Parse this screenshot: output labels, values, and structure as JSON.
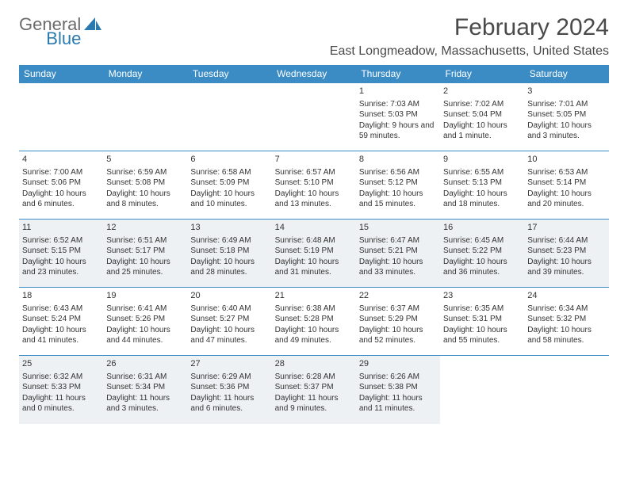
{
  "logo": {
    "part1": "General",
    "part2": "Blue"
  },
  "title": "February 2024",
  "location": "East Longmeadow, Massachusetts, United States",
  "dayHeaders": [
    "Sunday",
    "Monday",
    "Tuesday",
    "Wednesday",
    "Thursday",
    "Friday",
    "Saturday"
  ],
  "colors": {
    "headerBg": "#3b8bc4",
    "headerText": "#ffffff",
    "shaded": "#eef1f3",
    "border": "#3b8bc4",
    "logoAccent": "#2a7ab0",
    "logoGray": "#6b6b6b"
  },
  "startOffset": 4,
  "days": [
    {
      "n": "1",
      "sunrise": "7:03 AM",
      "sunset": "5:03 PM",
      "daylight": "9 hours and 59 minutes."
    },
    {
      "n": "2",
      "sunrise": "7:02 AM",
      "sunset": "5:04 PM",
      "daylight": "10 hours and 1 minute."
    },
    {
      "n": "3",
      "sunrise": "7:01 AM",
      "sunset": "5:05 PM",
      "daylight": "10 hours and 3 minutes."
    },
    {
      "n": "4",
      "sunrise": "7:00 AM",
      "sunset": "5:06 PM",
      "daylight": "10 hours and 6 minutes."
    },
    {
      "n": "5",
      "sunrise": "6:59 AM",
      "sunset": "5:08 PM",
      "daylight": "10 hours and 8 minutes."
    },
    {
      "n": "6",
      "sunrise": "6:58 AM",
      "sunset": "5:09 PM",
      "daylight": "10 hours and 10 minutes."
    },
    {
      "n": "7",
      "sunrise": "6:57 AM",
      "sunset": "5:10 PM",
      "daylight": "10 hours and 13 minutes."
    },
    {
      "n": "8",
      "sunrise": "6:56 AM",
      "sunset": "5:12 PM",
      "daylight": "10 hours and 15 minutes."
    },
    {
      "n": "9",
      "sunrise": "6:55 AM",
      "sunset": "5:13 PM",
      "daylight": "10 hours and 18 minutes."
    },
    {
      "n": "10",
      "sunrise": "6:53 AM",
      "sunset": "5:14 PM",
      "daylight": "10 hours and 20 minutes."
    },
    {
      "n": "11",
      "sunrise": "6:52 AM",
      "sunset": "5:15 PM",
      "daylight": "10 hours and 23 minutes."
    },
    {
      "n": "12",
      "sunrise": "6:51 AM",
      "sunset": "5:17 PM",
      "daylight": "10 hours and 25 minutes."
    },
    {
      "n": "13",
      "sunrise": "6:49 AM",
      "sunset": "5:18 PM",
      "daylight": "10 hours and 28 minutes."
    },
    {
      "n": "14",
      "sunrise": "6:48 AM",
      "sunset": "5:19 PM",
      "daylight": "10 hours and 31 minutes."
    },
    {
      "n": "15",
      "sunrise": "6:47 AM",
      "sunset": "5:21 PM",
      "daylight": "10 hours and 33 minutes."
    },
    {
      "n": "16",
      "sunrise": "6:45 AM",
      "sunset": "5:22 PM",
      "daylight": "10 hours and 36 minutes."
    },
    {
      "n": "17",
      "sunrise": "6:44 AM",
      "sunset": "5:23 PM",
      "daylight": "10 hours and 39 minutes."
    },
    {
      "n": "18",
      "sunrise": "6:43 AM",
      "sunset": "5:24 PM",
      "daylight": "10 hours and 41 minutes."
    },
    {
      "n": "19",
      "sunrise": "6:41 AM",
      "sunset": "5:26 PM",
      "daylight": "10 hours and 44 minutes."
    },
    {
      "n": "20",
      "sunrise": "6:40 AM",
      "sunset": "5:27 PM",
      "daylight": "10 hours and 47 minutes."
    },
    {
      "n": "21",
      "sunrise": "6:38 AM",
      "sunset": "5:28 PM",
      "daylight": "10 hours and 49 minutes."
    },
    {
      "n": "22",
      "sunrise": "6:37 AM",
      "sunset": "5:29 PM",
      "daylight": "10 hours and 52 minutes."
    },
    {
      "n": "23",
      "sunrise": "6:35 AM",
      "sunset": "5:31 PM",
      "daylight": "10 hours and 55 minutes."
    },
    {
      "n": "24",
      "sunrise": "6:34 AM",
      "sunset": "5:32 PM",
      "daylight": "10 hours and 58 minutes."
    },
    {
      "n": "25",
      "sunrise": "6:32 AM",
      "sunset": "5:33 PM",
      "daylight": "11 hours and 0 minutes."
    },
    {
      "n": "26",
      "sunrise": "6:31 AM",
      "sunset": "5:34 PM",
      "daylight": "11 hours and 3 minutes."
    },
    {
      "n": "27",
      "sunrise": "6:29 AM",
      "sunset": "5:36 PM",
      "daylight": "11 hours and 6 minutes."
    },
    {
      "n": "28",
      "sunrise": "6:28 AM",
      "sunset": "5:37 PM",
      "daylight": "11 hours and 9 minutes."
    },
    {
      "n": "29",
      "sunrise": "6:26 AM",
      "sunset": "5:38 PM",
      "daylight": "11 hours and 11 minutes."
    }
  ],
  "labels": {
    "sunrise": "Sunrise:",
    "sunset": "Sunset:",
    "daylight": "Daylight:"
  }
}
